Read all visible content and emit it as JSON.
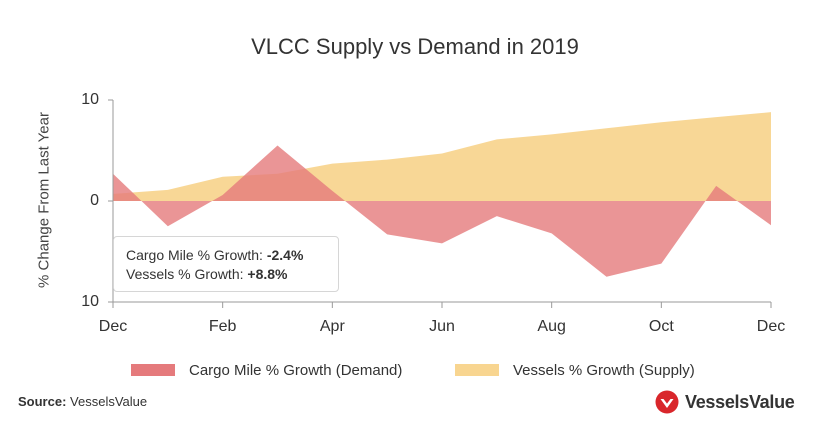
{
  "chart_data": {
    "type": "area",
    "title": "VLCC Supply vs Demand in 2019",
    "xlabel": "",
    "ylabel": "% Change From Last Year",
    "x_ticks": [
      "Dec",
      "Feb",
      "Apr",
      "Jun",
      "Aug",
      "Oct",
      "Dec"
    ],
    "y_ticks": [
      "10",
      "0",
      "10"
    ],
    "ylim": [
      -10,
      10
    ],
    "x": [
      0,
      1,
      2,
      3,
      4,
      5,
      6,
      7,
      8,
      9,
      10,
      11,
      12
    ],
    "series": [
      {
        "name": "Cargo Mile % Growth (Demand)",
        "color": "#e57a7c",
        "values": [
          2.7,
          -2.5,
          0.6,
          5.5,
          1.0,
          -3.3,
          -4.2,
          -1.5,
          -3.2,
          -7.5,
          -6.2,
          1.5,
          -2.4
        ]
      },
      {
        "name": "Vessels % Growth (Supply)",
        "color": "#f8d590",
        "values": [
          0.7,
          1.1,
          2.4,
          2.7,
          3.7,
          4.1,
          4.7,
          6.1,
          6.6,
          7.2,
          7.8,
          8.3,
          8.8
        ]
      }
    ],
    "grid": false,
    "legend_position": "bottom"
  },
  "tooltip": {
    "cargo_label": "Cargo Mile % Growth:",
    "cargo_value": "-2.4%",
    "vessels_label": "Vessels % Growth:",
    "vessels_value": "+8.8%"
  },
  "footer": {
    "source_label": "Source:",
    "source_value": "VesselsValue",
    "brand_name": "VesselsValue",
    "brand_color": "#d9262b",
    "brand_icon": "vesselsvalue-logo-icon"
  }
}
